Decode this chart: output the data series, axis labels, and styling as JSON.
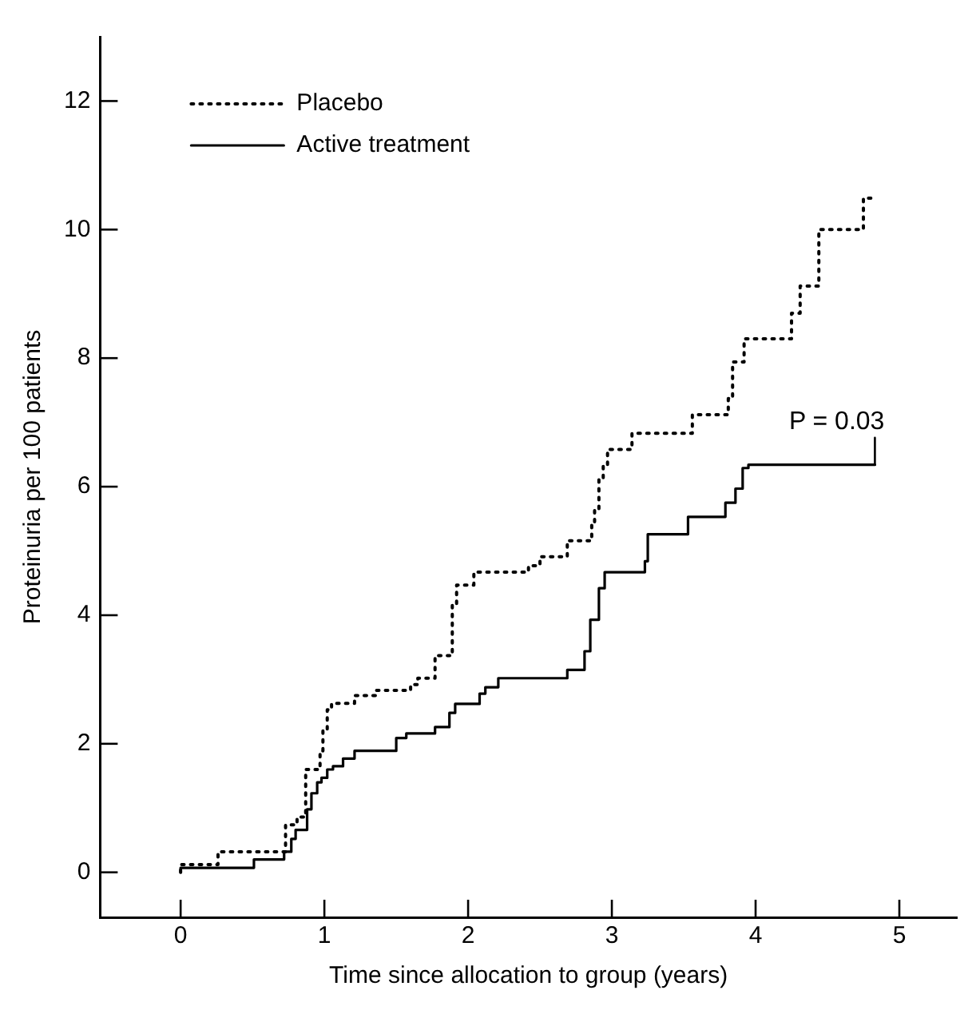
{
  "chart_data": {
    "type": "step",
    "xlabel": "Time since allocation to group (years)",
    "ylabel": "Proteinuria per 100 patients",
    "xlim": [
      -0.56,
      5.4
    ],
    "ylim": [
      -0.7,
      13
    ],
    "xticks": [
      0,
      1,
      2,
      3,
      4,
      5
    ],
    "yticks": [
      0,
      2,
      4,
      6,
      8,
      10,
      12
    ],
    "grid": false,
    "legend": "top left",
    "series": [
      {
        "name": "Placebo",
        "color": "#000000",
        "line_style": "dotted",
        "x": [
          0,
          0.26,
          0.73,
          0.81,
          0.87,
          0.97,
          0.99,
          1.02,
          1.05,
          1.21,
          1.36,
          1.6,
          1.65,
          1.77,
          1.89,
          1.92,
          2.04,
          2.42,
          2.5,
          2.69,
          2.86,
          2.88,
          2.91,
          2.94,
          2.97,
          3.14,
          3.56,
          3.81,
          3.84,
          3.92,
          4.25,
          4.31,
          4.44,
          4.75,
          4.81
        ],
        "values": [
          0,
          0.12,
          0.32,
          0.74,
          0.86,
          1.6,
          1.89,
          2.21,
          2.53,
          2.63,
          2.75,
          2.83,
          2.92,
          3.02,
          3.37,
          4.18,
          4.47,
          4.67,
          4.77,
          4.91,
          5.16,
          5.4,
          5.65,
          6.14,
          6.34,
          6.58,
          6.83,
          7.12,
          7.37,
          7.94,
          8.3,
          8.7,
          9.12,
          10.0,
          10.49
        ]
      },
      {
        "name": "Active treatment",
        "color": "#000000",
        "line_style": "solid",
        "x": [
          0,
          0.51,
          0.72,
          0.77,
          0.8,
          0.88,
          0.91,
          0.95,
          0.98,
          1.02,
          1.06,
          1.13,
          1.21,
          1.5,
          1.57,
          1.77,
          1.87,
          1.91,
          2.08,
          2.12,
          2.21,
          2.69,
          2.81,
          2.85,
          2.91,
          2.95,
          3.23,
          3.25,
          3.53,
          3.79,
          3.86,
          3.91,
          3.95,
          4.83
        ],
        "values": [
          0,
          0.07,
          0.2,
          0.32,
          0.52,
          0.66,
          0.98,
          1.23,
          1.4,
          1.47,
          1.6,
          1.65,
          1.77,
          1.89,
          2.09,
          2.16,
          2.26,
          2.48,
          2.62,
          2.78,
          2.88,
          3.02,
          3.15,
          3.44,
          3.93,
          4.42,
          4.67,
          4.84,
          5.26,
          5.53,
          5.75,
          5.97,
          6.29,
          6.34
        ]
      }
    ],
    "annotations": [
      "P = 0.03"
    ]
  }
}
